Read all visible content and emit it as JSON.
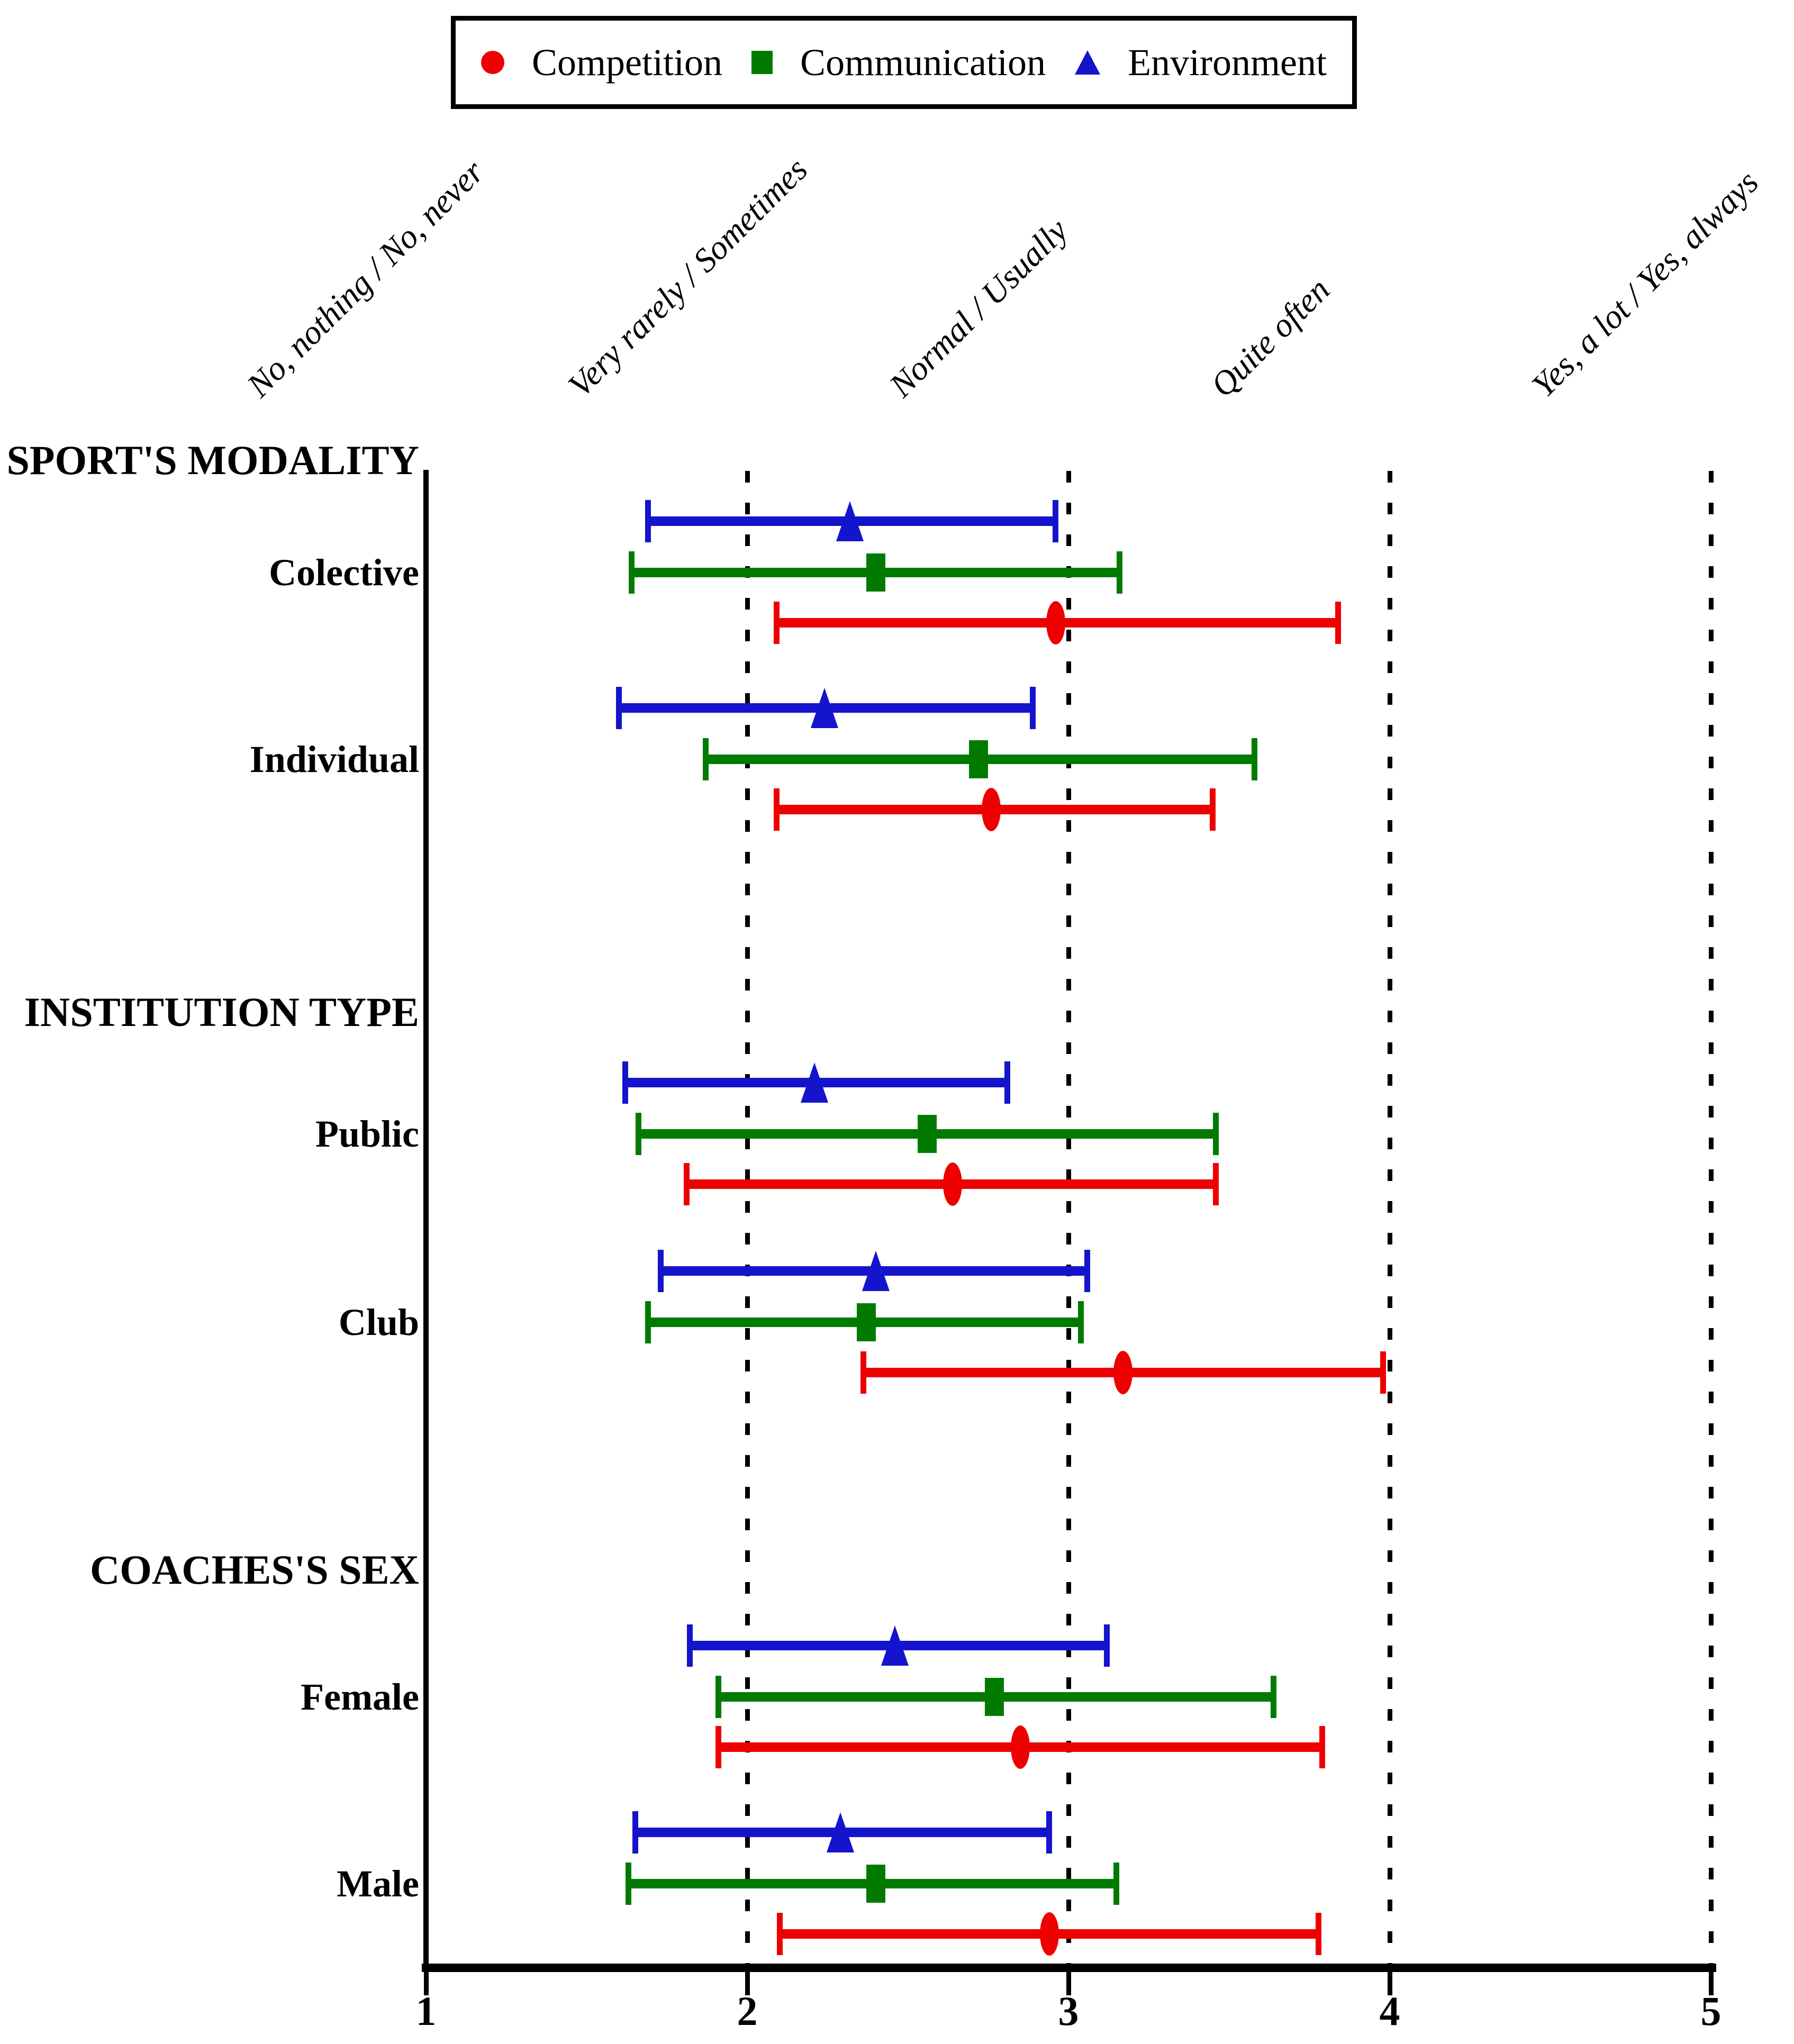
{
  "chart_data": {
    "type": "scatter",
    "subtype": "horizontal-error-bar-forest-plot",
    "title": "",
    "x_axis": {
      "min": 1,
      "max": 5,
      "ticks": [
        1,
        2,
        3,
        4,
        5
      ],
      "gridlines_at": [
        2,
        3,
        4,
        5
      ],
      "grid_style": "dotted",
      "top_scale_labels": [
        {
          "value": 1,
          "label": "No, nothing / No, never"
        },
        {
          "value": 2,
          "label": "Very rarely / Sometimes"
        },
        {
          "value": 3,
          "label": "Normal / Usually"
        },
        {
          "value": 4,
          "label": "Quite often"
        },
        {
          "value": 5,
          "label": "Yes, a lot / Yes, always"
        }
      ]
    },
    "legend": [
      {
        "name": "Competition",
        "marker": "circle",
        "color": "#ee0000"
      },
      {
        "name": "Communication",
        "marker": "square",
        "color": "#007b00"
      },
      {
        "name": "Environment",
        "marker": "triangle",
        "color": "#1414cc"
      }
    ],
    "legend_position": "top",
    "sections": [
      {
        "title": "SPORT'S MODALITY",
        "groups": [
          {
            "label": "Colective",
            "values": [
              {
                "series": "Environment",
                "mean": 2.32,
                "low": 1.69,
                "high": 2.96
              },
              {
                "series": "Communication",
                "mean": 2.4,
                "low": 1.64,
                "high": 3.16
              },
              {
                "series": "Competition",
                "mean": 2.96,
                "low": 2.09,
                "high": 3.84
              }
            ]
          },
          {
            "label": "Individual",
            "values": [
              {
                "series": "Environment",
                "mean": 2.24,
                "low": 1.6,
                "high": 2.89
              },
              {
                "series": "Communication",
                "mean": 2.72,
                "low": 1.87,
                "high": 3.58
              },
              {
                "series": "Competition",
                "mean": 2.76,
                "low": 2.09,
                "high": 3.45
              }
            ]
          }
        ]
      },
      {
        "title": "INSTITUTION TYPE",
        "groups": [
          {
            "label": "Public",
            "values": [
              {
                "series": "Environment",
                "mean": 2.21,
                "low": 1.62,
                "high": 2.81
              },
              {
                "series": "Communication",
                "mean": 2.56,
                "low": 1.66,
                "high": 3.46
              },
              {
                "series": "Competition",
                "mean": 2.64,
                "low": 1.81,
                "high": 3.46
              }
            ]
          },
          {
            "label": "Club",
            "values": [
              {
                "series": "Environment",
                "mean": 2.4,
                "low": 1.73,
                "high": 3.06
              },
              {
                "series": "Communication",
                "mean": 2.37,
                "low": 1.69,
                "high": 3.04
              },
              {
                "series": "Competition",
                "mean": 3.17,
                "low": 2.36,
                "high": 3.98
              }
            ]
          }
        ]
      },
      {
        "title": "COACHES'S SEX",
        "groups": [
          {
            "label": "Female",
            "values": [
              {
                "series": "Environment",
                "mean": 2.46,
                "low": 1.82,
                "high": 3.12
              },
              {
                "series": "Communication",
                "mean": 2.77,
                "low": 1.91,
                "high": 3.64
              },
              {
                "series": "Competition",
                "mean": 2.85,
                "low": 1.91,
                "high": 3.79
              }
            ]
          },
          {
            "label": "Male",
            "values": [
              {
                "series": "Environment",
                "mean": 2.29,
                "low": 1.65,
                "high": 2.94
              },
              {
                "series": "Communication",
                "mean": 2.4,
                "low": 1.63,
                "high": 3.15
              },
              {
                "series": "Competition",
                "mean": 2.94,
                "low": 2.1,
                "high": 3.78
              }
            ]
          }
        ]
      }
    ]
  }
}
